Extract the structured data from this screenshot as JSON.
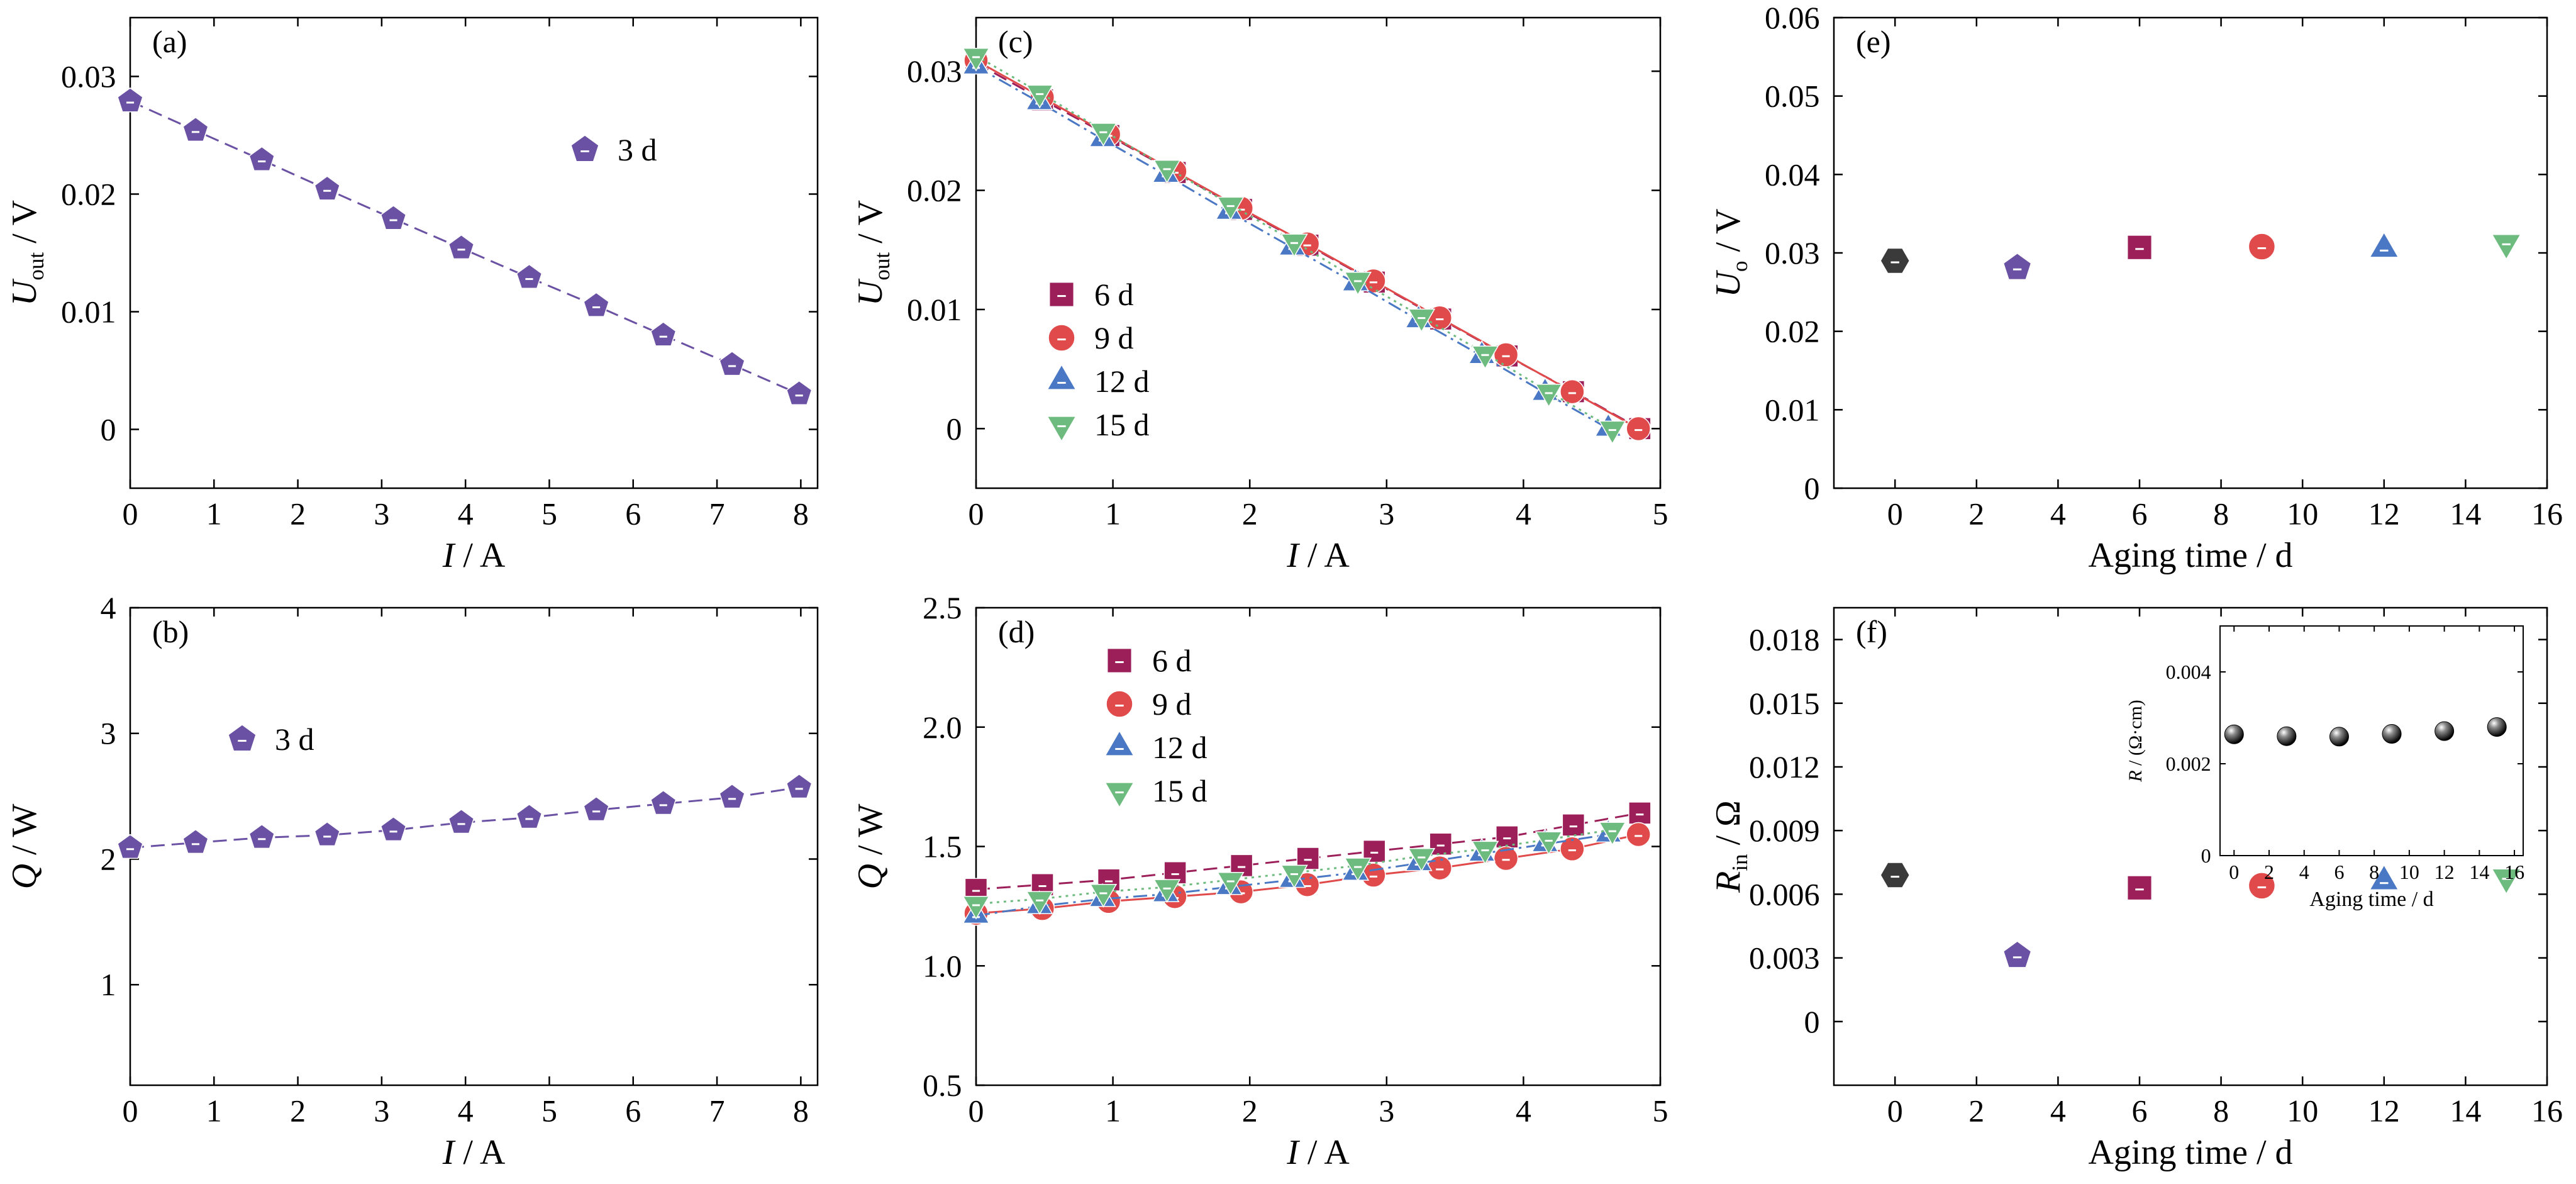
{
  "chart_data": [
    {
      "id": "a",
      "panel_label": "(a)",
      "type": "scatter",
      "xlabel": {
        "sym": "I",
        "unit": " / A"
      },
      "ylabel": {
        "sym": "U",
        "sub": "out",
        "unit": " / V"
      },
      "xlim": [
        0,
        8.2
      ],
      "ylim": [
        -0.005,
        0.035
      ],
      "xticks": [
        {
          "v": 0,
          "t": "0"
        },
        {
          "v": 1,
          "t": "1"
        },
        {
          "v": 2,
          "t": "2"
        },
        {
          "v": 3,
          "t": "3"
        },
        {
          "v": 4,
          "t": "4"
        },
        {
          "v": 5,
          "t": "5"
        },
        {
          "v": 6,
          "t": "6"
        },
        {
          "v": 7,
          "t": "7"
        },
        {
          "v": 8,
          "t": "8"
        }
      ],
      "yticks": [
        {
          "v": 0,
          "t": "0"
        },
        {
          "v": 0.01,
          "t": "0.01"
        },
        {
          "v": 0.02,
          "t": "0.02"
        },
        {
          "v": 0.03,
          "t": "0.03"
        }
      ],
      "legend_anchor": "upper-middle",
      "series": [
        {
          "name": "3 d",
          "marker": "pentagon",
          "color": "#6a51a3",
          "line": "dashed",
          "x": [
            0,
            0.78,
            1.57,
            2.35,
            3.14,
            3.95,
            4.76,
            5.56,
            6.36,
            7.18,
            7.98
          ],
          "y": [
            0.0279,
            0.0254,
            0.0229,
            0.0204,
            0.0179,
            0.0154,
            0.0129,
            0.0105,
            0.008,
            0.0055,
            0.003
          ]
        }
      ]
    },
    {
      "id": "b",
      "panel_label": "(b)",
      "type": "scatter",
      "xlabel": {
        "sym": "I",
        "unit": " / A"
      },
      "ylabel": {
        "sym": "Q",
        "unit": " / W"
      },
      "xlim": [
        0,
        8.2
      ],
      "ylim": [
        0.2,
        4
      ],
      "xticks": [
        {
          "v": 0,
          "t": "0"
        },
        {
          "v": 1,
          "t": "1"
        },
        {
          "v": 2,
          "t": "2"
        },
        {
          "v": 3,
          "t": "3"
        },
        {
          "v": 4,
          "t": "4"
        },
        {
          "v": 5,
          "t": "5"
        },
        {
          "v": 6,
          "t": "6"
        },
        {
          "v": 7,
          "t": "7"
        },
        {
          "v": 8,
          "t": "8"
        }
      ],
      "yticks": [
        {
          "v": 1,
          "t": "1"
        },
        {
          "v": 2,
          "t": "2"
        },
        {
          "v": 3,
          "t": "3"
        },
        {
          "v": 4,
          "t": "4"
        }
      ],
      "legend_anchor": "upper-left",
      "series": [
        {
          "name": "3 d",
          "marker": "pentagon",
          "color": "#6a51a3",
          "line": "dashed",
          "x": [
            0,
            0.78,
            1.57,
            2.35,
            3.14,
            3.95,
            4.76,
            5.56,
            6.36,
            7.18,
            7.98
          ],
          "y": [
            2.09,
            2.13,
            2.17,
            2.19,
            2.23,
            2.29,
            2.33,
            2.39,
            2.44,
            2.49,
            2.57
          ]
        }
      ]
    },
    {
      "id": "c",
      "panel_label": "(c)",
      "type": "scatter",
      "xlabel": {
        "sym": "I",
        "unit": " / A"
      },
      "ylabel": {
        "sym": "U",
        "sub": "out",
        "unit": " / V"
      },
      "xlim": [
        0,
        5
      ],
      "ylim": [
        -0.005,
        0.0345
      ],
      "xticks": [
        {
          "v": 0,
          "t": "0"
        },
        {
          "v": 1,
          "t": "1"
        },
        {
          "v": 2,
          "t": "2"
        },
        {
          "v": 3,
          "t": "3"
        },
        {
          "v": 4,
          "t": "4"
        },
        {
          "v": 5,
          "t": "5"
        }
      ],
      "yticks": [
        {
          "v": 0,
          "t": "0"
        },
        {
          "v": 0.01,
          "t": "0.01"
        },
        {
          "v": 0.02,
          "t": "0.02"
        },
        {
          "v": 0.03,
          "t": "0.03"
        }
      ],
      "legend_anchor": "middle-left",
      "series": [
        {
          "name": "6 d",
          "marker": "square",
          "color": "#9c1f5a",
          "line": "dashed",
          "x": [
            0,
            0.485,
            0.97,
            1.455,
            1.94,
            2.425,
            2.91,
            3.395,
            3.88,
            4.365,
            4.85
          ],
          "y": [
            0.0307,
            0.0276,
            0.0246,
            0.0215,
            0.0184,
            0.0154,
            0.0123,
            0.0092,
            0.0061,
            0.0031,
            0.0
          ]
        },
        {
          "name": "9 d",
          "marker": "circle",
          "color": "#e04a4a",
          "line": "solid",
          "x": [
            0,
            0.484,
            0.968,
            1.452,
            1.936,
            2.42,
            2.904,
            3.388,
            3.872,
            4.356,
            4.84
          ],
          "y": [
            0.0309,
            0.0278,
            0.0247,
            0.0216,
            0.0185,
            0.0155,
            0.0124,
            0.0093,
            0.0062,
            0.0031,
            0.0
          ]
        },
        {
          "name": "12 d",
          "marker": "triangle-up",
          "color": "#4a78c4",
          "line": "dashdot",
          "x": [
            0,
            0.462,
            0.924,
            1.386,
            1.848,
            2.31,
            2.772,
            3.234,
            3.696,
            4.158,
            4.62
          ],
          "y": [
            0.0304,
            0.0274,
            0.0243,
            0.0213,
            0.0182,
            0.0152,
            0.0122,
            0.0091,
            0.0061,
            0.003,
            0.0
          ]
        },
        {
          "name": "15 d",
          "marker": "triangle-down",
          "color": "#6dbb7e",
          "line": "dotted",
          "x": [
            0,
            0.465,
            0.93,
            1.395,
            1.86,
            2.325,
            2.79,
            3.255,
            3.72,
            4.185,
            4.65
          ],
          "y": [
            0.0313,
            0.0282,
            0.025,
            0.0219,
            0.0188,
            0.0157,
            0.0125,
            0.0094,
            0.0063,
            0.0031,
            0.0
          ]
        }
      ]
    },
    {
      "id": "d",
      "panel_label": "(d)",
      "type": "scatter",
      "xlabel": {
        "sym": "I",
        "unit": " / A"
      },
      "ylabel": {
        "sym": "Q",
        "unit": " / W"
      },
      "xlim": [
        0,
        5
      ],
      "ylim": [
        0.5,
        2.5
      ],
      "xticks": [
        {
          "v": 0,
          "t": "0"
        },
        {
          "v": 1,
          "t": "1"
        },
        {
          "v": 2,
          "t": "2"
        },
        {
          "v": 3,
          "t": "3"
        },
        {
          "v": 4,
          "t": "4"
        },
        {
          "v": 5,
          "t": "5"
        }
      ],
      "yticks": [
        {
          "v": 0.5,
          "t": "0.5"
        },
        {
          "v": 1.0,
          "t": "1.0"
        },
        {
          "v": 1.5,
          "t": "1.5"
        },
        {
          "v": 2.0,
          "t": "2.0"
        },
        {
          "v": 2.5,
          "t": "2.5"
        }
      ],
      "legend_anchor": "upper-middle",
      "series": [
        {
          "name": "6 d",
          "marker": "square",
          "color": "#9c1f5a",
          "line": "dashed",
          "x": [
            0,
            0.485,
            0.97,
            1.455,
            1.94,
            2.425,
            2.91,
            3.395,
            3.88,
            4.365,
            4.85
          ],
          "y": [
            1.32,
            1.34,
            1.36,
            1.39,
            1.42,
            1.45,
            1.48,
            1.51,
            1.54,
            1.59,
            1.64
          ]
        },
        {
          "name": "9 d",
          "marker": "circle",
          "color": "#e04a4a",
          "line": "solid",
          "x": [
            0,
            0.484,
            0.968,
            1.452,
            1.936,
            2.42,
            2.904,
            3.388,
            3.872,
            4.356,
            4.84
          ],
          "y": [
            1.22,
            1.24,
            1.27,
            1.29,
            1.31,
            1.34,
            1.38,
            1.41,
            1.45,
            1.49,
            1.55
          ]
        },
        {
          "name": "12 d",
          "marker": "triangle-up",
          "color": "#4a78c4",
          "line": "dashdot",
          "x": [
            0,
            0.462,
            0.924,
            1.386,
            1.848,
            2.31,
            2.772,
            3.234,
            3.696,
            4.158,
            4.62
          ],
          "y": [
            1.21,
            1.25,
            1.28,
            1.3,
            1.33,
            1.36,
            1.39,
            1.43,
            1.47,
            1.51,
            1.55
          ]
        },
        {
          "name": "15 d",
          "marker": "triangle-down",
          "color": "#6dbb7e",
          "line": "dotted",
          "x": [
            0,
            0.465,
            0.93,
            1.395,
            1.86,
            2.325,
            2.79,
            3.255,
            3.72,
            4.185,
            4.65
          ],
          "y": [
            1.26,
            1.28,
            1.31,
            1.33,
            1.36,
            1.39,
            1.42,
            1.46,
            1.49,
            1.53,
            1.57
          ]
        }
      ]
    },
    {
      "id": "e",
      "panel_label": "(e)",
      "type": "scatter",
      "xlabel": {
        "text": "Aging time / d"
      },
      "ylabel": {
        "sym": "U",
        "sub": "o",
        "unit": " / V"
      },
      "xlim": [
        -1.5,
        16
      ],
      "ylim": [
        0,
        0.06
      ],
      "xticks": [
        {
          "v": 0,
          "t": "0"
        },
        {
          "v": 2,
          "t": "2"
        },
        {
          "v": 4,
          "t": "4"
        },
        {
          "v": 6,
          "t": "6"
        },
        {
          "v": 8,
          "t": "8"
        },
        {
          "v": 10,
          "t": "10"
        },
        {
          "v": 12,
          "t": "12"
        },
        {
          "v": 14,
          "t": "14"
        },
        {
          "v": 16,
          "t": "16"
        }
      ],
      "yticks": [
        {
          "v": 0,
          "t": "0"
        },
        {
          "v": 0.01,
          "t": "0.01"
        },
        {
          "v": 0.02,
          "t": "0.02"
        },
        {
          "v": 0.03,
          "t": "0.03"
        },
        {
          "v": 0.04,
          "t": "0.04"
        },
        {
          "v": 0.05,
          "t": "0.05"
        },
        {
          "v": 0.06,
          "t": "0.06"
        }
      ],
      "points": [
        {
          "x": 0,
          "y": 0.029,
          "marker": "hexagon",
          "color": "#3a3a3a"
        },
        {
          "x": 3,
          "y": 0.0281,
          "marker": "pentagon",
          "color": "#6a51a3"
        },
        {
          "x": 6,
          "y": 0.0307,
          "marker": "square",
          "color": "#9c1f5a"
        },
        {
          "x": 9,
          "y": 0.0308,
          "marker": "circle",
          "color": "#e04a4a"
        },
        {
          "x": 12,
          "y": 0.0305,
          "marker": "triangle-up",
          "color": "#4a78c4"
        },
        {
          "x": 15,
          "y": 0.0313,
          "marker": "triangle-down",
          "color": "#6dbb7e"
        }
      ]
    },
    {
      "id": "f",
      "panel_label": "(f)",
      "type": "scatter",
      "xlabel": {
        "text": "Aging time / d"
      },
      "ylabel": {
        "sym": "R",
        "sub": "in",
        "unit": " / Ω"
      },
      "xlim": [
        -1.5,
        16
      ],
      "ylim": [
        -0.003,
        0.0195
      ],
      "xticks": [
        {
          "v": 0,
          "t": "0"
        },
        {
          "v": 2,
          "t": "2"
        },
        {
          "v": 4,
          "t": "4"
        },
        {
          "v": 6,
          "t": "6"
        },
        {
          "v": 8,
          "t": "8"
        },
        {
          "v": 10,
          "t": "10"
        },
        {
          "v": 12,
          "t": "12"
        },
        {
          "v": 14,
          "t": "14"
        },
        {
          "v": 16,
          "t": "16"
        }
      ],
      "yticks": [
        {
          "v": 0,
          "t": "0"
        },
        {
          "v": 0.003,
          "t": "0.003"
        },
        {
          "v": 0.006,
          "t": "0.006"
        },
        {
          "v": 0.009,
          "t": "0.009"
        },
        {
          "v": 0.012,
          "t": "0.012"
        },
        {
          "v": 0.015,
          "t": "0.015"
        },
        {
          "v": 0.018,
          "t": "0.018"
        }
      ],
      "points": [
        {
          "x": 0,
          "y": 0.0069,
          "marker": "hexagon",
          "color": "#3a3a3a"
        },
        {
          "x": 3,
          "y": 0.0031,
          "marker": "pentagon",
          "color": "#6a51a3"
        },
        {
          "x": 6,
          "y": 0.0063,
          "marker": "square",
          "color": "#9c1f5a"
        },
        {
          "x": 9,
          "y": 0.0064,
          "marker": "circle",
          "color": "#e04a4a"
        },
        {
          "x": 12,
          "y": 0.0066,
          "marker": "triangle-up",
          "color": "#4a78c4"
        },
        {
          "x": 15,
          "y": 0.0068,
          "marker": "triangle-down",
          "color": "#6dbb7e"
        }
      ],
      "inset": {
        "type": "scatter",
        "xlabel": {
          "text": "Aging time / d"
        },
        "ylabel": {
          "sym": "R",
          "unit": " / (Ω·cm)"
        },
        "xlim": [
          -0.8,
          16.5
        ],
        "ylim": [
          0,
          0.005
        ],
        "xticks": [
          {
            "v": 0,
            "t": "0"
          },
          {
            "v": 2,
            "t": "2"
          },
          {
            "v": 4,
            "t": "4"
          },
          {
            "v": 6,
            "t": "6"
          },
          {
            "v": 8,
            "t": "8"
          },
          {
            "v": 10,
            "t": "10"
          },
          {
            "v": 12,
            "t": "12"
          },
          {
            "v": 14,
            "t": "14"
          },
          {
            "v": 16,
            "t": "16"
          }
        ],
        "yticks": [
          {
            "v": 0,
            "t": "0"
          },
          {
            "v": 0.002,
            "t": "0.002"
          },
          {
            "v": 0.004,
            "t": "0.004"
          }
        ],
        "points": [
          {
            "x": 0,
            "y": 0.00264
          },
          {
            "x": 3,
            "y": 0.0026
          },
          {
            "x": 6,
            "y": 0.00259
          },
          {
            "x": 9,
            "y": 0.00265
          },
          {
            "x": 12,
            "y": 0.00271
          },
          {
            "x": 15,
            "y": 0.0028
          }
        ]
      }
    }
  ]
}
